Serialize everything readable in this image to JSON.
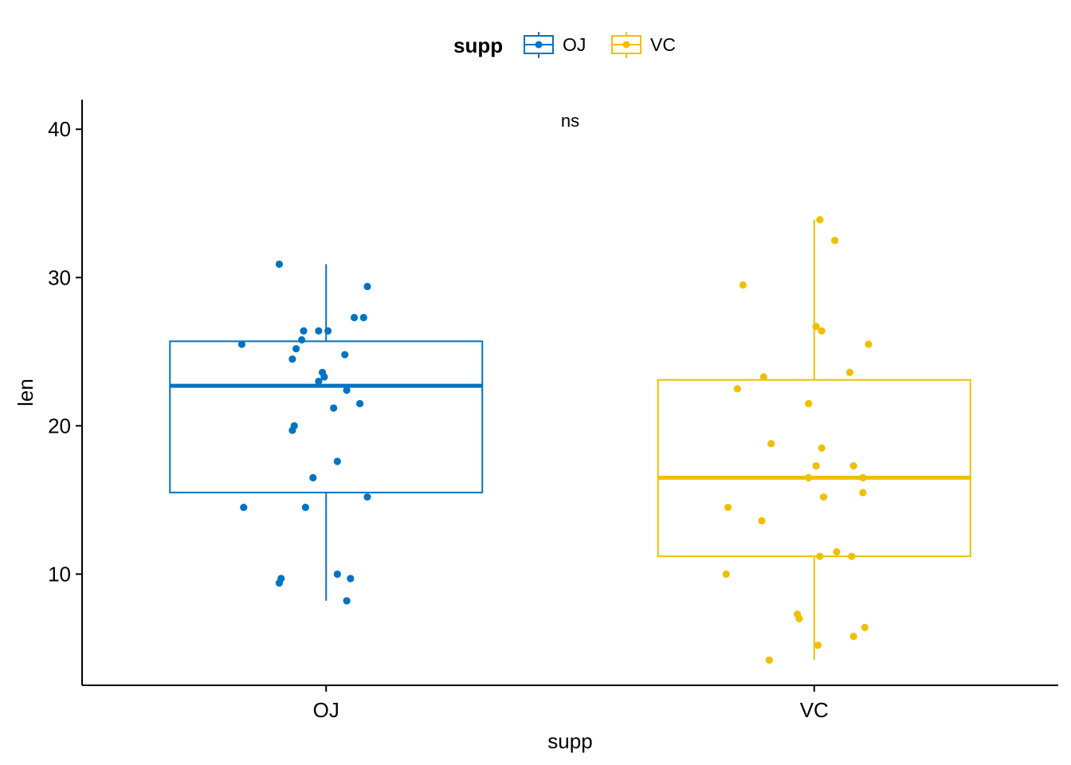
{
  "chart_data": {
    "type": "boxplot",
    "xlabel": "supp",
    "ylabel": "len",
    "ylim": [
      2.5,
      42
    ],
    "yticks": [
      10,
      20,
      30,
      40
    ],
    "grid": false,
    "legend": {
      "title": "supp",
      "placement": "top",
      "entries": [
        "OJ",
        "VC"
      ]
    },
    "annotation": "ns",
    "colors": {
      "OJ": "#0073C2",
      "VC": "#EFC000"
    },
    "categories": [
      "OJ",
      "VC"
    ],
    "series": [
      {
        "name": "OJ",
        "box": {
          "min": 8.2,
          "q1": 15.5,
          "median": 22.7,
          "q3": 25.7,
          "max": 30.9
        },
        "points": [
          [
            0.25,
            9.4
          ],
          [
            0.26,
            9.7
          ],
          [
            0.61,
            8.2
          ],
          [
            0.63,
            9.7
          ],
          [
            0.56,
            10.0
          ],
          [
            0.06,
            14.5
          ],
          [
            0.39,
            14.5
          ],
          [
            0.72,
            15.2
          ],
          [
            0.43,
            16.5
          ],
          [
            0.56,
            17.6
          ],
          [
            0.32,
            19.7
          ],
          [
            0.33,
            20.0
          ],
          [
            0.54,
            21.2
          ],
          [
            0.68,
            21.5
          ],
          [
            0.61,
            22.4
          ],
          [
            0.46,
            23.0
          ],
          [
            0.49,
            23.3
          ],
          [
            0.48,
            23.6
          ],
          [
            0.6,
            24.8
          ],
          [
            0.32,
            24.5
          ],
          [
            0.34,
            25.2
          ],
          [
            0.05,
            25.5
          ],
          [
            0.37,
            25.8
          ],
          [
            0.38,
            26.4
          ],
          [
            0.46,
            26.4
          ],
          [
            0.51,
            26.4
          ],
          [
            0.65,
            27.3
          ],
          [
            0.7,
            27.3
          ],
          [
            0.72,
            29.4
          ],
          [
            0.25,
            30.9
          ]
        ]
      },
      {
        "name": "VC",
        "box": {
          "min": 4.2,
          "q1": 11.2,
          "median": 16.5,
          "q3": 23.1,
          "max": 33.9
        },
        "points": [
          [
            0.26,
            4.2
          ],
          [
            0.52,
            5.2
          ],
          [
            0.42,
            7.0
          ],
          [
            0.41,
            7.3
          ],
          [
            0.71,
            5.8
          ],
          [
            0.77,
            6.4
          ],
          [
            0.03,
            10.0
          ],
          [
            0.53,
            11.2
          ],
          [
            0.7,
            11.2
          ],
          [
            0.62,
            11.5
          ],
          [
            0.22,
            13.6
          ],
          [
            0.04,
            14.5
          ],
          [
            0.55,
            15.2
          ],
          [
            0.76,
            15.5
          ],
          [
            0.47,
            16.5
          ],
          [
            0.76,
            16.5
          ],
          [
            0.51,
            17.3
          ],
          [
            0.71,
            17.3
          ],
          [
            0.54,
            18.5
          ],
          [
            0.27,
            18.8
          ],
          [
            0.47,
            21.5
          ],
          [
            0.09,
            22.5
          ],
          [
            0.23,
            23.3
          ],
          [
            0.69,
            23.6
          ],
          [
            0.79,
            25.5
          ],
          [
            0.54,
            26.4
          ],
          [
            0.51,
            26.7
          ],
          [
            0.12,
            29.5
          ],
          [
            0.61,
            32.5
          ],
          [
            0.53,
            33.9
          ]
        ]
      }
    ]
  }
}
